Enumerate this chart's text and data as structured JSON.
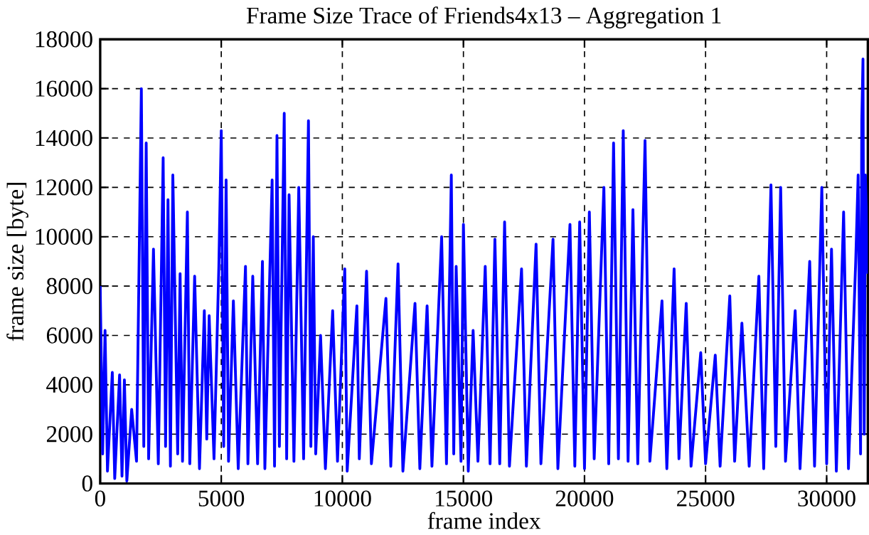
{
  "chart_data": {
    "type": "line",
    "title": "Frame Size Trace of Friends4x13 – Aggregation 1",
    "xlabel": "frame index",
    "ylabel": "frame size [byte]",
    "x": [
      0,
      100,
      200,
      300,
      500,
      600,
      800,
      900,
      1000,
      1100,
      1300,
      1500,
      1700,
      1800,
      1900,
      2000,
      2200,
      2400,
      2600,
      2700,
      2800,
      2900,
      3000,
      3200,
      3300,
      3400,
      3600,
      3700,
      3900,
      4100,
      4300,
      4400,
      4500,
      4700,
      4900,
      5000,
      5100,
      5200,
      5300,
      5500,
      5700,
      6000,
      6100,
      6300,
      6500,
      6700,
      6800,
      7100,
      7200,
      7300,
      7400,
      7600,
      7700,
      7800,
      8000,
      8200,
      8400,
      8600,
      8700,
      8800,
      8900,
      9100,
      9300,
      9600,
      9800,
      10100,
      10200,
      10600,
      10700,
      11000,
      11200,
      11800,
      12000,
      12300,
      12500,
      13000,
      13200,
      13500,
      13700,
      14100,
      14300,
      14500,
      14600,
      14700,
      14900,
      15000,
      15200,
      15400,
      15600,
      15900,
      16100,
      16300,
      16500,
      16700,
      16900,
      17400,
      17600,
      18000,
      18200,
      18700,
      18900,
      19400,
      19600,
      19800,
      20000,
      20200,
      20400,
      20800,
      21000,
      21200,
      21400,
      21600,
      21800,
      22000,
      22200,
      22500,
      22700,
      23200,
      23400,
      23700,
      23900,
      24200,
      24400,
      24800,
      25000,
      25400,
      25600,
      26000,
      26200,
      26500,
      26800,
      27200,
      27400,
      27700,
      27900,
      28100,
      28300,
      28700,
      28900,
      29300,
      29500,
      29800,
      30000,
      30200,
      30400,
      30700,
      30900,
      31200,
      31300,
      31400,
      31450,
      31500,
      31550,
      31600,
      31700
    ],
    "series": [
      {
        "color": "#0000ff",
        "values": [
          8000,
          1200,
          6200,
          500,
          4500,
          200,
          4400,
          300,
          4200,
          100,
          3000,
          900,
          16000,
          1500,
          13800,
          1000,
          9500,
          800,
          13200,
          1500,
          11500,
          700,
          12500,
          1200,
          8500,
          900,
          11000,
          800,
          8400,
          600,
          7000,
          1800,
          6800,
          1000,
          8800,
          14300,
          1500,
          12300,
          900,
          7400,
          600,
          8800,
          800,
          8400,
          800,
          9000,
          600,
          12300,
          700,
          14100,
          1500,
          15000,
          1000,
          11700,
          900,
          12000,
          1000,
          14700,
          1500,
          10000,
          1200,
          6000,
          600,
          7000,
          900,
          8700,
          500,
          7200,
          1000,
          8600,
          800,
          7500,
          700,
          8900,
          500,
          7300,
          600,
          7200,
          700,
          10000,
          800,
          12500,
          1200,
          8800,
          900,
          10500,
          500,
          6200,
          900,
          8800,
          800,
          9900,
          800,
          10600,
          700,
          8700,
          700,
          9700,
          800,
          9900,
          600,
          10500,
          700,
          10600,
          600,
          11000,
          1000,
          12000,
          800,
          13800,
          1000,
          14300,
          900,
          11100,
          800,
          13900,
          900,
          7400,
          600,
          8700,
          1000,
          7300,
          700,
          5300,
          800,
          5200,
          700,
          7600,
          900,
          6500,
          700,
          8400,
          600,
          12100,
          1500,
          12000,
          900,
          7000,
          600,
          9000,
          700,
          12000,
          800,
          9500,
          500,
          11000,
          600,
          9000,
          12500,
          1200,
          14700,
          17200,
          2000,
          12500,
          8500
        ]
      }
    ],
    "xlim": [
      0,
      31700
    ],
    "ylim": [
      0,
      18000
    ],
    "xticks": [
      0,
      5000,
      10000,
      15000,
      20000,
      25000,
      30000
    ],
    "yticks": [
      0,
      2000,
      4000,
      6000,
      8000,
      10000,
      12000,
      14000,
      16000,
      18000
    ],
    "grid": true,
    "line_style": "solid",
    "marker": "none"
  }
}
